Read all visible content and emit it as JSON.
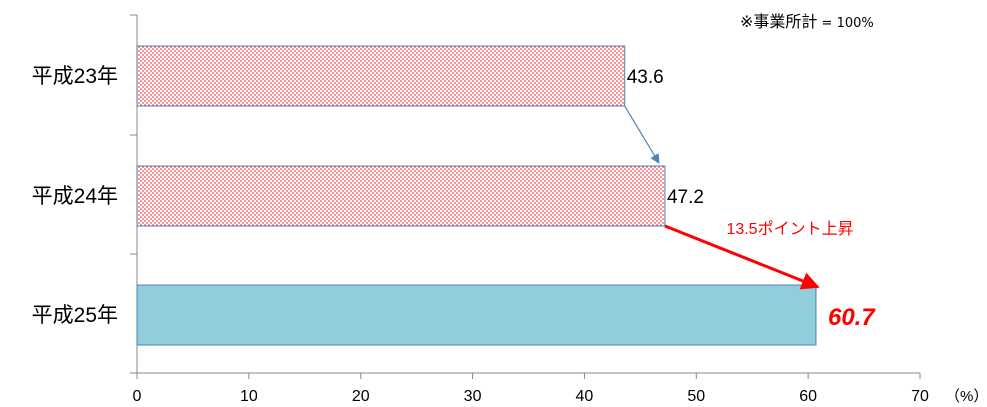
{
  "note": {
    "prefix": "※事業所計",
    "suffix": " = 100%"
  },
  "chart_data": {
    "type": "bar",
    "orientation": "horizontal",
    "categories": [
      "平成23年",
      "平成24年",
      "平成25年"
    ],
    "values": [
      43.6,
      47.2,
      60.7
    ],
    "value_labels": [
      "43.6",
      "47.2",
      "60.7"
    ],
    "xlim": [
      0,
      70
    ],
    "x_ticks": [
      0,
      10,
      20,
      30,
      40,
      50,
      60,
      70
    ],
    "x_unit": "（%）",
    "bar_fills": [
      "red-dot-pattern",
      "red-dot-pattern",
      "light-blue"
    ],
    "colors": {
      "bar_border": "#4f81bd",
      "highlight_fill": "#92cddc",
      "dot": "#ff0000",
      "annotation": "#ff0000"
    },
    "annotations": [
      {
        "type": "arrow",
        "from": "平成23年",
        "to": "平成24年"
      },
      {
        "type": "arrow",
        "from": "平成24年",
        "to": "平成25年",
        "text": "13.5ポイント上昇"
      }
    ],
    "grid": false,
    "legend": "none"
  }
}
